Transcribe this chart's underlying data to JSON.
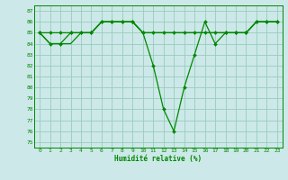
{
  "xlabel": "Humidité relative (%)",
  "bg_color": "#cce8e8",
  "grid_color": "#99ccbb",
  "line_color": "#008800",
  "ylim": [
    74.5,
    87.5
  ],
  "xlim": [
    -0.5,
    23.5
  ],
  "yticks": [
    75,
    76,
    77,
    78,
    79,
    80,
    81,
    82,
    83,
    84,
    85,
    86,
    87
  ],
  "xticks": [
    0,
    1,
    2,
    3,
    4,
    5,
    6,
    7,
    8,
    9,
    10,
    11,
    12,
    13,
    14,
    15,
    16,
    17,
    18,
    19,
    20,
    21,
    22,
    23
  ],
  "series1_x": [
    0,
    1,
    2,
    3,
    4,
    5,
    6,
    7,
    8,
    9,
    10,
    11,
    12,
    13,
    14,
    15,
    16,
    17,
    18,
    19,
    20,
    21,
    22,
    23
  ],
  "series1_y": [
    85,
    84,
    84,
    85,
    85,
    85,
    86,
    86,
    86,
    86,
    85,
    82,
    78,
    76,
    80,
    83,
    86,
    84,
    85,
    85,
    85,
    86,
    86,
    86
  ],
  "series2_x": [
    0,
    1,
    2,
    3,
    4,
    5,
    6,
    7,
    8,
    9,
    10,
    11,
    12,
    13,
    14,
    15,
    16,
    17,
    18,
    19,
    20,
    21,
    22,
    23
  ],
  "series2_y": [
    85,
    85,
    85,
    85,
    85,
    85,
    86,
    86,
    86,
    86,
    85,
    85,
    85,
    85,
    85,
    85,
    85,
    85,
    85,
    85,
    85,
    86,
    86,
    86
  ],
  "series3_x": [
    0,
    1,
    2,
    3,
    4,
    5,
    6,
    7,
    8,
    9,
    10,
    11,
    12,
    13,
    14,
    15,
    16,
    17,
    18,
    19,
    20,
    21,
    22,
    23
  ],
  "series3_y": [
    85,
    84,
    84,
    84,
    85,
    85,
    86,
    86,
    86,
    86,
    85,
    85,
    85,
    85,
    85,
    85,
    85,
    85,
    85,
    85,
    85,
    86,
    86,
    86
  ]
}
